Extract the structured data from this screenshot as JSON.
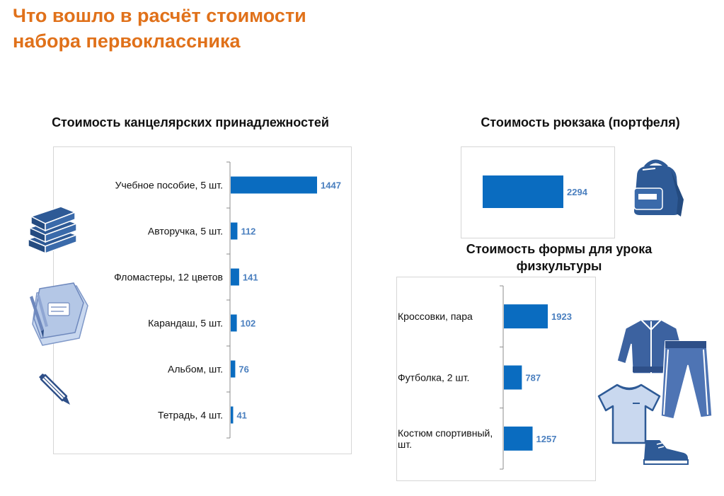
{
  "page": {
    "title_line1": "Что вошло в расчёт стоимости",
    "title_line2": "набора первоклассника",
    "accent_color": "#E0711A",
    "bar_color": "#0A6CC0",
    "value_label_color": "#4A7FBF"
  },
  "chart_data": [
    {
      "type": "bar",
      "orientation": "horizontal",
      "title": "Стоимость канцелярских принадлежностей",
      "categories": [
        "Учебное пособие, 5 шт.",
        "Авторучка, 5 шт.",
        "Фломастеры,  12 цветов",
        "Карандаш, 5 шт.",
        "Альбом, шт.",
        "Тетрадь, 4 шт."
      ],
      "values": [
        1447,
        112,
        141,
        102,
        76,
        41
      ],
      "data_labels": [
        "1447",
        "112",
        "141",
        "102",
        "76",
        "41"
      ],
      "grid": false,
      "legend": "none"
    },
    {
      "type": "bar",
      "orientation": "horizontal",
      "title": "Стоимость рюкзака (портфеля)",
      "categories": [
        ""
      ],
      "values": [
        2294
      ],
      "data_labels": [
        "2294"
      ],
      "grid": false,
      "legend": "none"
    },
    {
      "type": "bar",
      "orientation": "horizontal",
      "title_line1": "Стоимость формы для урока",
      "title_line2": "физкультуры",
      "categories": [
        "Кроссовки, пара",
        "Футболка, 2 шт.",
        "Костюм спортивный, шт."
      ],
      "category_lines": [
        [
          "Кроссовки, пара"
        ],
        [
          "Футболка, 2 шт."
        ],
        [
          "Костюм спортивный,",
          "шт."
        ]
      ],
      "values": [
        1923,
        787,
        1257
      ],
      "data_labels": [
        "1923",
        "787",
        "1257"
      ],
      "grid": false,
      "legend": "none"
    }
  ],
  "icons": [
    "books-icon",
    "notebook-with-pencils-icon",
    "pencil-icon",
    "backpack-icon",
    "sports-jacket-icon",
    "sports-pants-icon",
    "t-shirt-icon",
    "sneaker-icon"
  ]
}
